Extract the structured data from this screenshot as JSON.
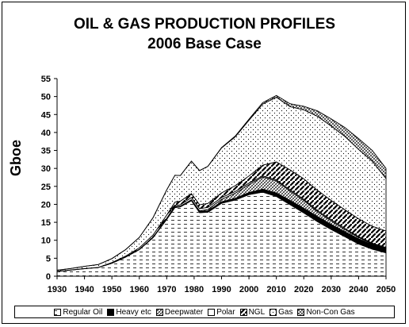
{
  "chart_data": {
    "type": "area",
    "stacked": true,
    "title": "OIL & GAS PRODUCTION PROFILES",
    "subtitle": "2006 Base Case",
    "ylabel": "Gboe",
    "xlabel": "",
    "xlim": [
      1930,
      2050
    ],
    "ylim": [
      0,
      55
    ],
    "x_ticks": [
      1930,
      1940,
      1950,
      1960,
      1970,
      1980,
      1990,
      2000,
      2010,
      2020,
      2030,
      2040,
      2050
    ],
    "y_ticks": [
      0,
      5,
      10,
      15,
      20,
      25,
      30,
      35,
      40,
      45,
      50,
      55
    ],
    "grid": false,
    "legend_position": "bottom",
    "x": [
      1930,
      1935,
      1940,
      1945,
      1950,
      1955,
      1960,
      1965,
      1970,
      1973,
      1975,
      1979,
      1982,
      1985,
      1990,
      1995,
      2000,
      2005,
      2010,
      2015,
      2020,
      2025,
      2030,
      2035,
      2040,
      2045,
      2050
    ],
    "series": [
      {
        "name": "Regular Oil",
        "pattern": "dashes",
        "values": [
          1.3,
          1.7,
          2.1,
          2.4,
          3.6,
          5.3,
          7.4,
          10.7,
          15.8,
          19.1,
          19.3,
          21.0,
          17.7,
          17.8,
          20.3,
          21.2,
          22.7,
          23.4,
          22.2,
          19.9,
          17.6,
          15.2,
          13.0,
          11.0,
          9.0,
          7.5,
          6.5
        ]
      },
      {
        "name": "Heavy etc",
        "pattern": "solid-black",
        "values": [
          0.05,
          0.05,
          0.05,
          0.05,
          0.1,
          0.1,
          0.1,
          0.15,
          0.2,
          0.2,
          0.2,
          0.3,
          0.3,
          0.35,
          0.4,
          0.5,
          0.6,
          0.8,
          1.0,
          1.2,
          1.3,
          1.4,
          1.4,
          1.4,
          1.4,
          1.3,
          1.2
        ]
      },
      {
        "name": "Deepwater",
        "pattern": "hatch",
        "values": [
          0,
          0,
          0,
          0,
          0,
          0,
          0,
          0,
          0,
          0,
          0,
          0,
          0.2,
          0.4,
          0.7,
          1.4,
          2.2,
          3.4,
          3.3,
          2.6,
          2.2,
          1.4,
          1.0,
          0.6,
          0.4,
          0.2,
          0.1
        ]
      },
      {
        "name": "Polar",
        "pattern": "white",
        "values": [
          0,
          0,
          0,
          0,
          0,
          0,
          0,
          0,
          0.1,
          0.3,
          0.4,
          0.6,
          0.6,
          0.6,
          0.5,
          0.5,
          0.4,
          0.3,
          0.3,
          0.3,
          0.3,
          0.3,
          0.3,
          0.3,
          0.2,
          0.2,
          0.2
        ]
      },
      {
        "name": "NGL",
        "pattern": "diagonal",
        "values": [
          0,
          0,
          0,
          0,
          0.1,
          0.2,
          0.4,
          0.6,
          0.9,
          1.0,
          1.0,
          1.1,
          1.1,
          1.1,
          1.3,
          1.6,
          2.0,
          3.0,
          5.0,
          5.6,
          5.7,
          5.6,
          5.4,
          5.2,
          5.0,
          4.7,
          4.6
        ]
      },
      {
        "name": "Gas",
        "pattern": "dots",
        "values": [
          0.3,
          0.4,
          0.6,
          0.8,
          1.1,
          1.8,
          2.9,
          4.8,
          7.0,
          7.5,
          7.1,
          9.0,
          9.5,
          10.3,
          12.5,
          13.6,
          15.5,
          17.0,
          18.0,
          17.6,
          19.2,
          20.6,
          20.7,
          20.4,
          19.3,
          18.1,
          14.6
        ]
      },
      {
        "name": "Non-Con Gas",
        "pattern": "crosshatch",
        "values": [
          0,
          0,
          0,
          0,
          0,
          0,
          0,
          0,
          0,
          0,
          0,
          0,
          0,
          0,
          0.1,
          0.2,
          0.3,
          0.4,
          0.5,
          0.8,
          1.0,
          1.5,
          2.0,
          2.5,
          3.0,
          3.0,
          2.8
        ]
      }
    ]
  },
  "legend": [
    "Regular Oil",
    "Heavy etc",
    "Deepwater",
    "Polar",
    "NGL",
    "Gas",
    "Non-Con Gas"
  ]
}
